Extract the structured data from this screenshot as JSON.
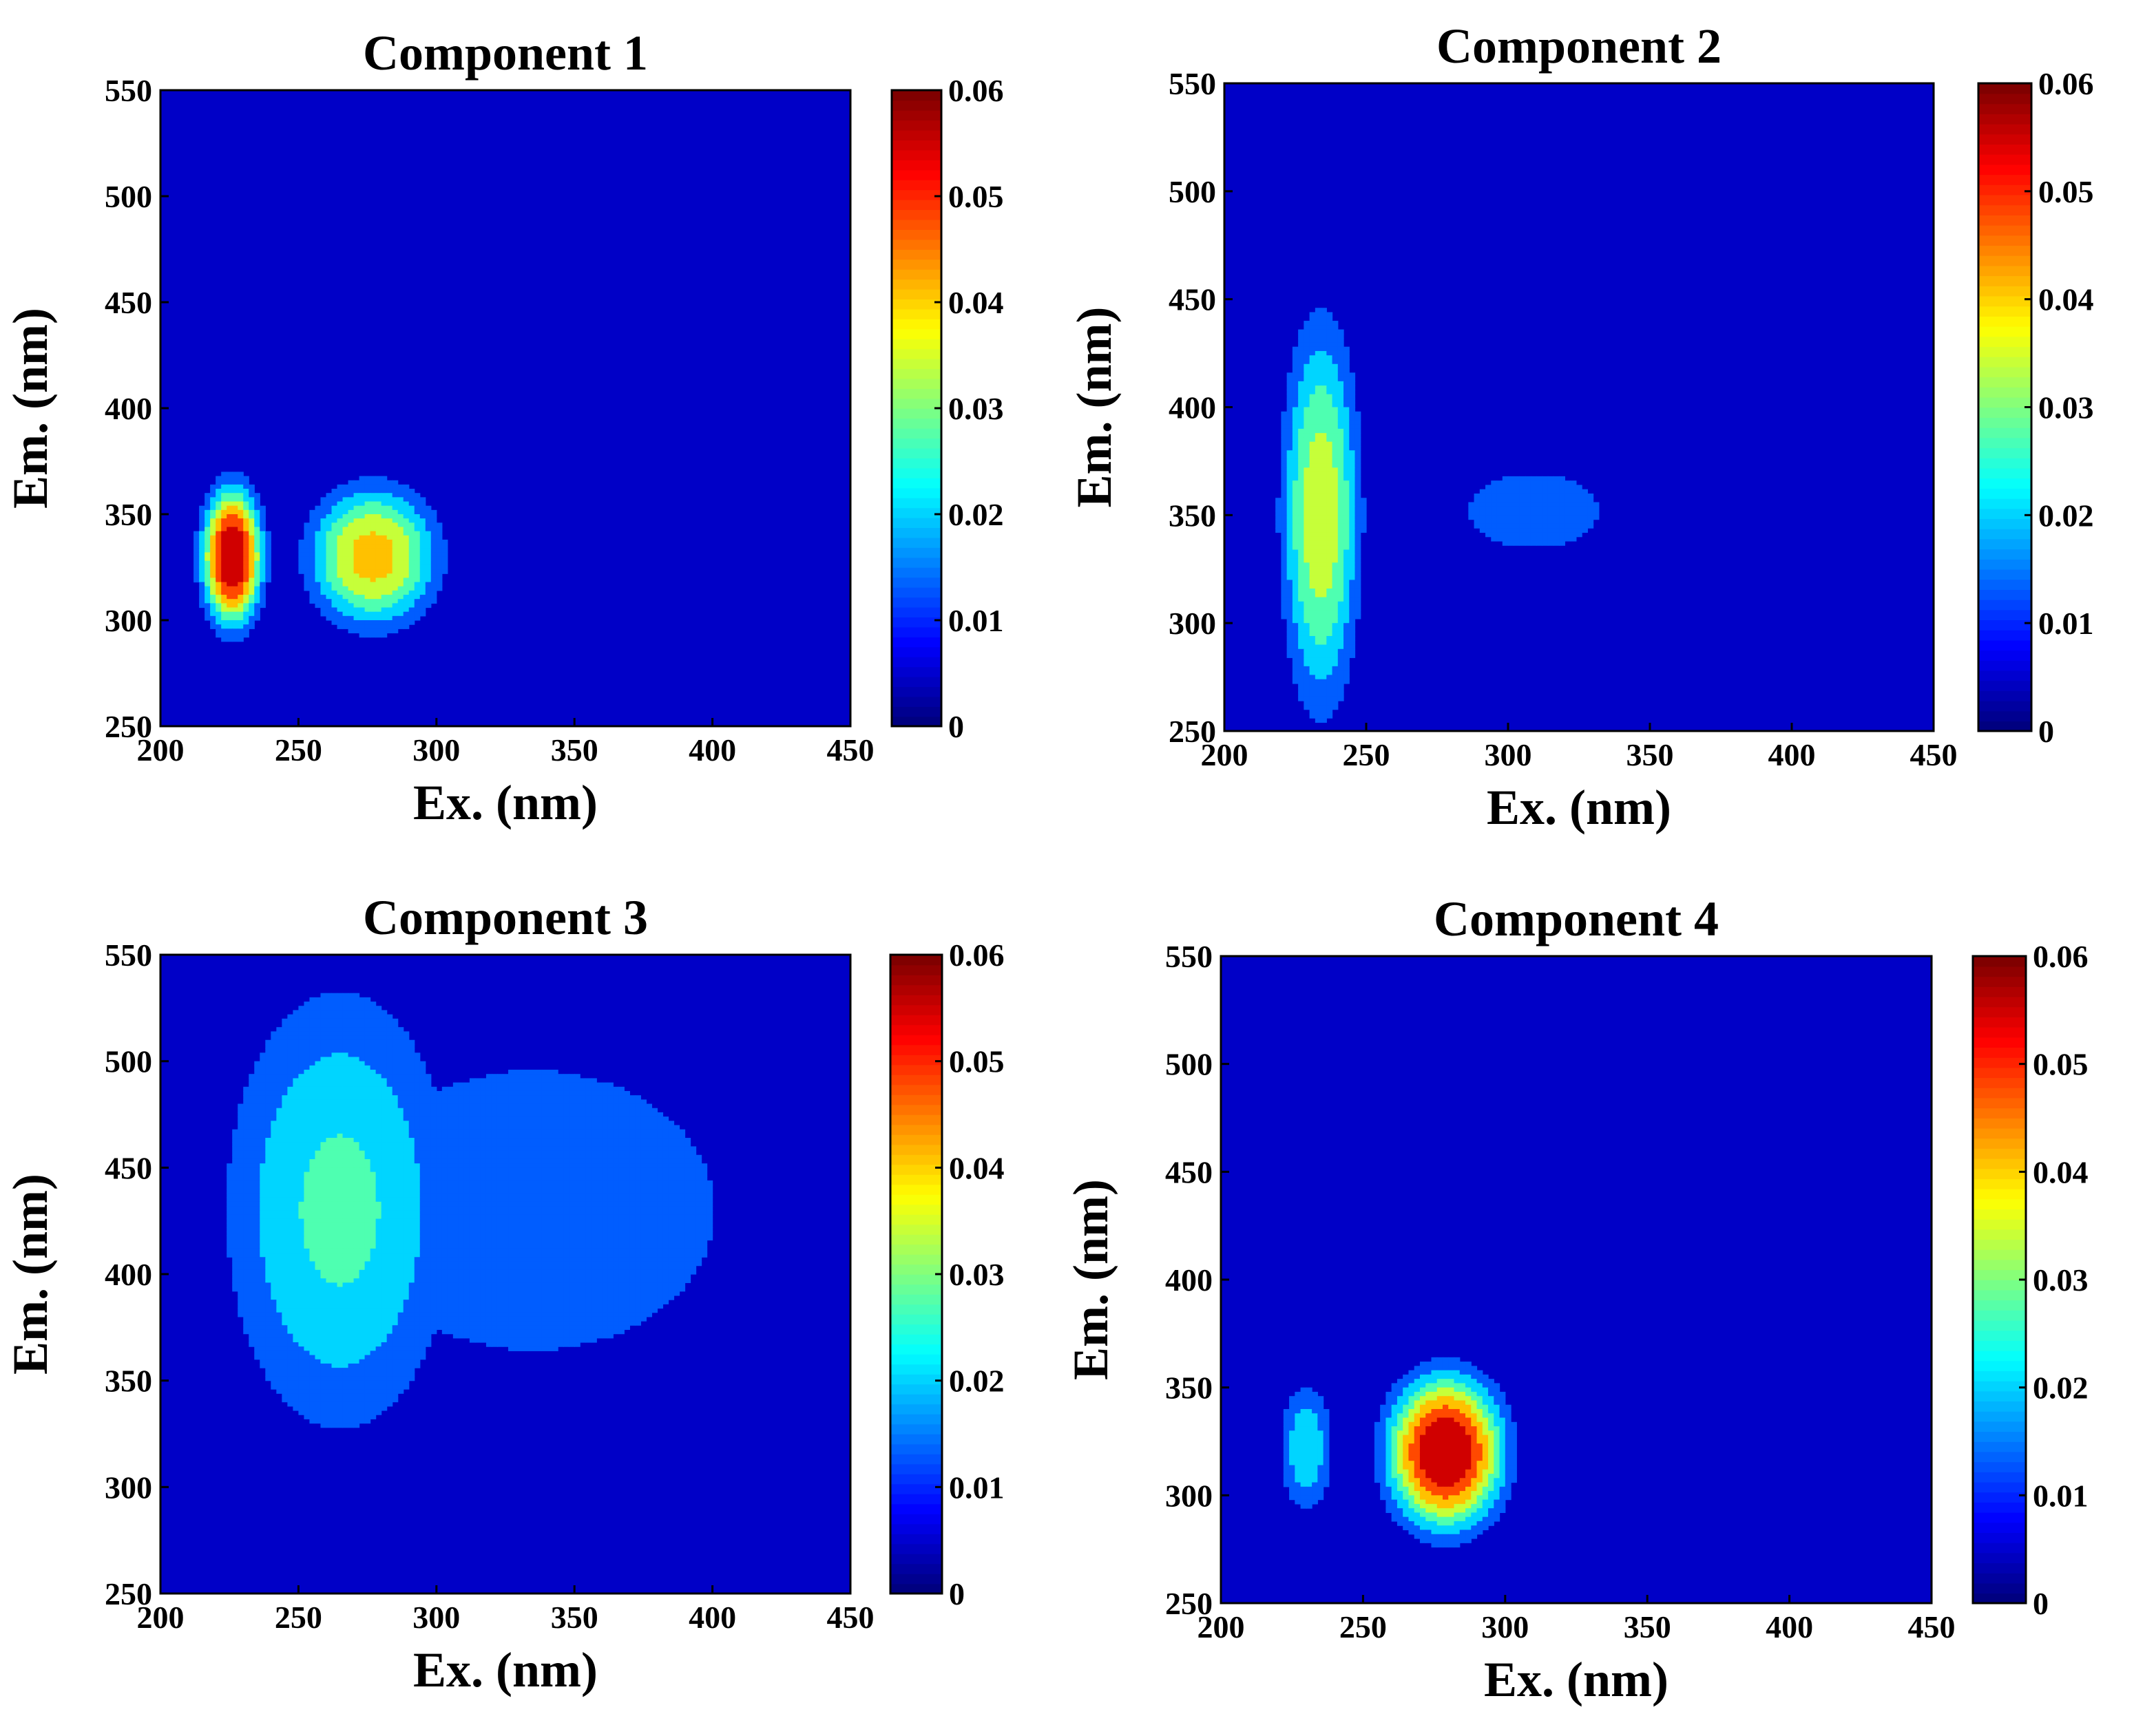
{
  "chart_data": [
    {
      "type": "heatmap",
      "title": "Component 1",
      "xlabel": "Ex. (nm)",
      "ylabel": "Em. (nm)",
      "xlim": [
        200,
        450
      ],
      "ylim": [
        250,
        550
      ],
      "xticks": [
        "200",
        "250",
        "300",
        "350",
        "400",
        "450"
      ],
      "yticks": [
        "250",
        "300",
        "350",
        "400",
        "450",
        "500",
        "550"
      ],
      "colorbar": {
        "range": [
          0,
          0.06
        ],
        "ticks": [
          "0",
          "0.01",
          "0.02",
          "0.03",
          "0.04",
          "0.05",
          "0.06"
        ],
        "colormap": "jet"
      },
      "peaks": [
        {
          "ex": 226,
          "em": 330,
          "intensity": 0.06,
          "sigma_ex": 8,
          "sigma_em": 24
        },
        {
          "ex": 277,
          "em": 330,
          "intensity": 0.04,
          "sigma_ex": 17,
          "sigma_em": 24
        }
      ]
    },
    {
      "type": "heatmap",
      "title": "Component 2",
      "xlabel": "Ex. (nm)",
      "ylabel": "Em. (nm)",
      "xlim": [
        200,
        450
      ],
      "ylim": [
        250,
        550
      ],
      "xticks": [
        "200",
        "250",
        "300",
        "350",
        "400",
        "450"
      ],
      "yticks": [
        "250",
        "300",
        "350",
        "400",
        "450",
        "500",
        "550"
      ],
      "colorbar": {
        "range": [
          0,
          0.06
        ],
        "ticks": [
          "0",
          "0.01",
          "0.02",
          "0.03",
          "0.04",
          "0.05",
          "0.06"
        ],
        "colormap": "jet"
      },
      "peaks": [
        {
          "ex": 234,
          "em": 350,
          "intensity": 0.034,
          "sigma_ex": 10,
          "sigma_em": 64
        },
        {
          "ex": 234,
          "em": 348,
          "intensity": 0.03,
          "sigma_ex": 6,
          "sigma_em": 16
        },
        {
          "ex": 309,
          "em": 352,
          "intensity": 0.0115,
          "sigma_ex": 24,
          "sigma_em": 18
        }
      ]
    },
    {
      "type": "heatmap",
      "title": "Component 3",
      "xlabel": "Ex. (nm)",
      "ylabel": "Em. (nm)",
      "xlim": [
        200,
        450
      ],
      "ylim": [
        250,
        550
      ],
      "xticks": [
        "200",
        "250",
        "300",
        "350",
        "400",
        "450"
      ],
      "yticks": [
        "250",
        "300",
        "350",
        "400",
        "450",
        "500",
        "550"
      ],
      "colorbar": {
        "range": [
          0,
          0.06
        ],
        "ticks": [
          "0",
          "0.01",
          "0.02",
          "0.03",
          "0.04",
          "0.05",
          "0.06"
        ],
        "colormap": "jet"
      },
      "peaks": [
        {
          "ex": 265,
          "em": 430,
          "intensity": 0.024,
          "sigma_ex": 30,
          "sigma_em": 75
        },
        {
          "ex": 335,
          "em": 430,
          "intensity": 0.0125,
          "sigma_ex": 65,
          "sigma_em": 65
        }
      ]
    },
    {
      "type": "heatmap",
      "title": "Component 4",
      "xlabel": "Ex. (nm)",
      "ylabel": "Em. (nm)",
      "xlim": [
        200,
        450
      ],
      "ylim": [
        250,
        550
      ],
      "xticks": [
        "200",
        "250",
        "300",
        "350",
        "400",
        "450"
      ],
      "yticks": [
        "250",
        "300",
        "350",
        "400",
        "450",
        "500",
        "550"
      ],
      "colorbar": {
        "range": [
          0,
          0.06
        ],
        "ticks": [
          "0",
          "0.01",
          "0.02",
          "0.03",
          "0.04",
          "0.05",
          "0.06"
        ],
        "colormap": "jet"
      },
      "peaks": [
        {
          "ex": 279,
          "em": 320,
          "intensity": 0.06,
          "sigma_ex": 15,
          "sigma_em": 26
        },
        {
          "ex": 230,
          "em": 322,
          "intensity": 0.02,
          "sigma_ex": 7,
          "sigma_em": 22
        }
      ]
    }
  ]
}
